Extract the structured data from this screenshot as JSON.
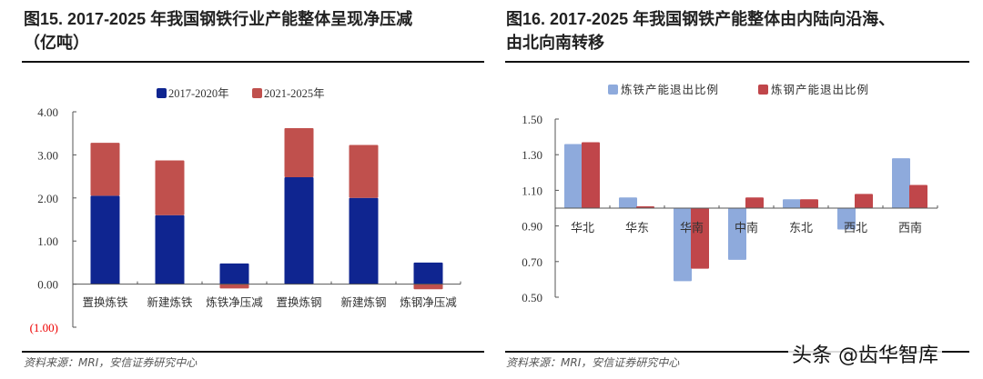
{
  "left": {
    "title_line1": "图15. 2017-2025 年我国钢铁行业产能整体呈现净压减",
    "title_line2": "（亿吨）",
    "source": "资料来源：MRI，安信证券研究中心"
  },
  "right": {
    "title_line1": "图16. 2017-2025 年我国钢铁产能整体由内陆向沿海、",
    "title_line2": "由北向南转移",
    "source": "资料来源：MRI，安信证券研究中心"
  },
  "watermark": "头条 @齿华智库",
  "chart_data": [
    {
      "type": "bar",
      "stacked": true,
      "categories": [
        "置换炼铁",
        "新建炼铁",
        "炼铁净压减",
        "置换炼钢",
        "新建炼钢",
        "炼钢净压减"
      ],
      "series": [
        {
          "name": "2017-2020年",
          "color": "#0f2590",
          "values": [
            2.05,
            1.6,
            0.48,
            2.48,
            2.0,
            0.5
          ]
        },
        {
          "name": "2021-2025年",
          "color": "#c0504d",
          "values": [
            1.23,
            1.27,
            -0.1,
            1.14,
            1.23,
            -0.12
          ]
        }
      ],
      "yticks": [
        "4.00",
        "3.00",
        "2.00",
        "1.00",
        "0.00",
        "(1.00)"
      ],
      "ylim": [
        -1,
        4
      ],
      "legend": "top",
      "grid": false
    },
    {
      "type": "bar",
      "categories": [
        "华北",
        "华东",
        "华南",
        "中南",
        "东北",
        "西北",
        "西南"
      ],
      "baseline": 1.0,
      "series": [
        {
          "name": "炼铁产能退出比例",
          "color": "#8eaadc",
          "values": [
            1.36,
            1.06,
            0.59,
            0.71,
            1.05,
            0.88,
            1.28
          ]
        },
        {
          "name": "炼钢产能退出比例",
          "color": "#c0464a",
          "values": [
            1.37,
            1.01,
            0.66,
            1.06,
            1.05,
            1.08,
            1.13
          ]
        }
      ],
      "yticks": [
        "1.50",
        "1.30",
        "1.10",
        "0.90",
        "0.70",
        "0.50"
      ],
      "ylim": [
        0.5,
        1.5
      ],
      "legend": "top",
      "grid": false
    }
  ]
}
